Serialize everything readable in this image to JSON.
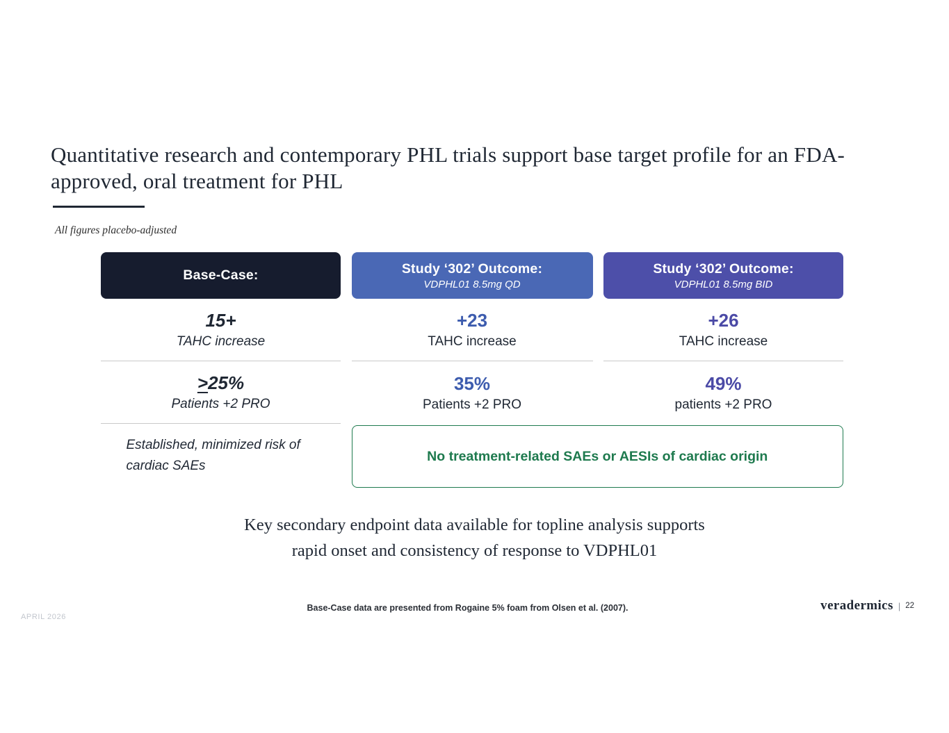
{
  "title": "Quantitative research and contemporary PHL trials support base target profile for an FDA-approved, oral treatment for PHL",
  "note": "All figures placebo-adjusted",
  "columns": [
    {
      "header": "Base-Case:",
      "metric1_value": "15+",
      "metric1_label": "TAHC increase",
      "metric2_prefix": ">",
      "metric2_value": "25%",
      "metric2_label": "Patients +2 PRO",
      "row3_text": "Established, minimized risk of cardiac SAEs"
    },
    {
      "header": "Study ‘302’ Outcome:",
      "subtitle": "VDPHL01 8.5mg QD",
      "metric1_value": "+23",
      "metric1_label": "TAHC increase",
      "metric2_value": "35%",
      "metric2_label": "Patients +2 PRO"
    },
    {
      "header": "Study ‘302’ Outcome:",
      "subtitle": "VDPHL01 8.5mg BID",
      "metric1_value": "+26",
      "metric1_label": "TAHC increase",
      "metric2_value": "49%",
      "metric2_label": "patients +2 PRO"
    }
  ],
  "green_box_text": "No treatment-related SAEs or AESIs of cardiac origin",
  "key_takeaway": {
    "line1": "Key secondary endpoint data available for topline analysis supports",
    "line2": "rapid onset and consistency of response to VDPHL01"
  },
  "footer": {
    "date": "APRIL 2026",
    "citation": "Base-Case data are presented from Rogaine 5% foam from Olsen et al. (2007).",
    "brand": "veradermics",
    "divider": "|",
    "page_number": "22"
  },
  "colors": {
    "dark_text": "#1f2733",
    "base_header_bg": "#161c2e",
    "qd_header_bg": "#4a68b5",
    "bid_header_bg": "#4d4fa9",
    "qd_accent": "#3d5cae",
    "bid_accent": "#4b4aa6",
    "green_accent": "#1e7a4e"
  }
}
